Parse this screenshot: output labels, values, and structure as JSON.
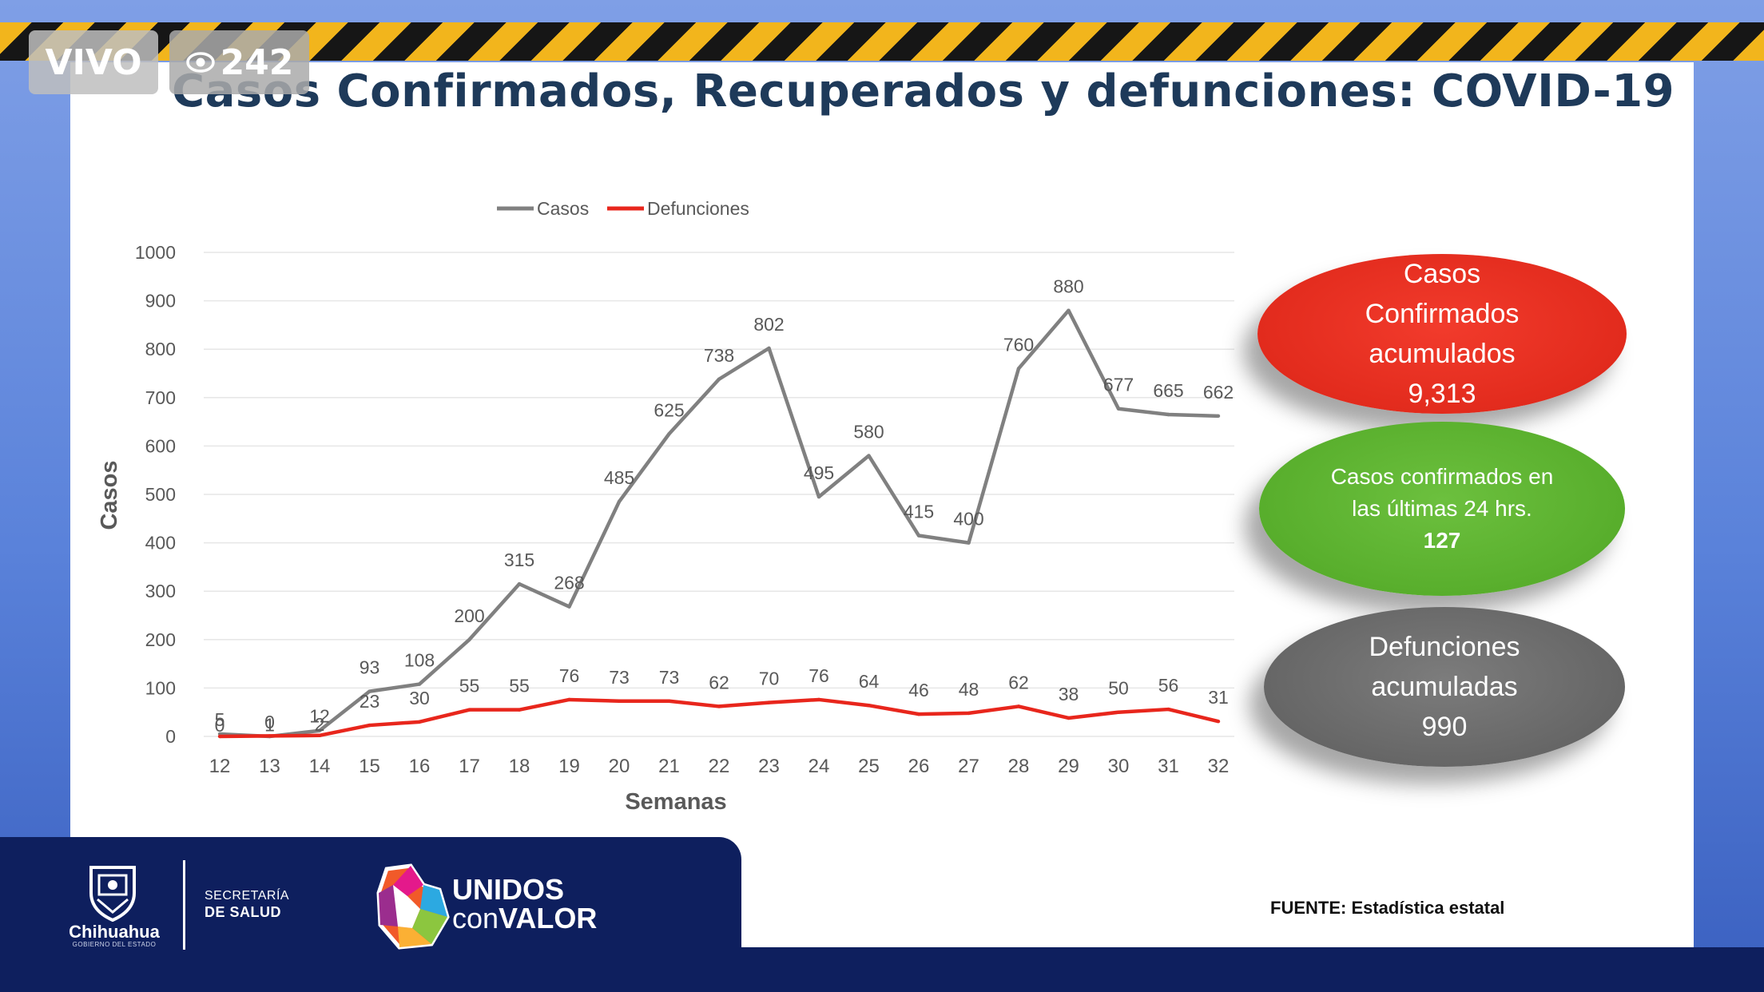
{
  "broadcast": {
    "live_label": "VIVO",
    "viewer_count": "242"
  },
  "slide": {
    "title": "Casos Confirmados, Recuperados y defunciones: COVID-19"
  },
  "chart_data": {
    "type": "line",
    "title": "Casos Confirmados, Recuperados y defunciones: COVID-19",
    "xlabel": "Semanas",
    "ylabel": "Casos",
    "ylim": [
      0,
      1000
    ],
    "yticks": [
      "0",
      "100",
      "200",
      "300",
      "400",
      "500",
      "600",
      "700",
      "800",
      "900",
      "1000"
    ],
    "categories": [
      "12",
      "13",
      "14",
      "15",
      "16",
      "17",
      "18",
      "19",
      "20",
      "21",
      "22",
      "23",
      "24",
      "25",
      "26",
      "27",
      "28",
      "29",
      "30",
      "31",
      "32"
    ],
    "legend_position": "top",
    "grid": true,
    "series": [
      {
        "name": "Casos",
        "color": "#808080",
        "values": [
          5,
          0,
          12,
          93,
          108,
          200,
          315,
          268,
          485,
          625,
          738,
          802,
          495,
          580,
          415,
          400,
          760,
          880,
          677,
          665,
          662
        ]
      },
      {
        "name": "Defunciones",
        "color": "#e8261c",
        "values": [
          0,
          1,
          2,
          23,
          30,
          55,
          55,
          76,
          73,
          73,
          62,
          70,
          76,
          64,
          46,
          48,
          62,
          38,
          50,
          56,
          31
        ]
      }
    ]
  },
  "summary": {
    "confirmed": {
      "line1": "Casos",
      "line2": "Confirmados",
      "line3": "acumulados",
      "value": "9,313",
      "color": "#e22b1d"
    },
    "last24": {
      "line1": "Casos confirmados en",
      "line2": "las últimas 24 hrs.",
      "value": "127",
      "color": "#58ae2c"
    },
    "deaths": {
      "line1": "Defunciones",
      "line2": "acumuladas",
      "value": "990",
      "color": "#666666"
    }
  },
  "footer": {
    "state_name": "Chihuahua",
    "state_sub": "GOBIERNO DEL ESTADO",
    "secretaria_line1": "SECRETARÍA",
    "secretaria_line2": "DE SALUD",
    "campaign_line1": "UNIDOS",
    "campaign_con": "con",
    "campaign_valor": "VALOR",
    "source": "FUENTE: Estadística estatal"
  }
}
